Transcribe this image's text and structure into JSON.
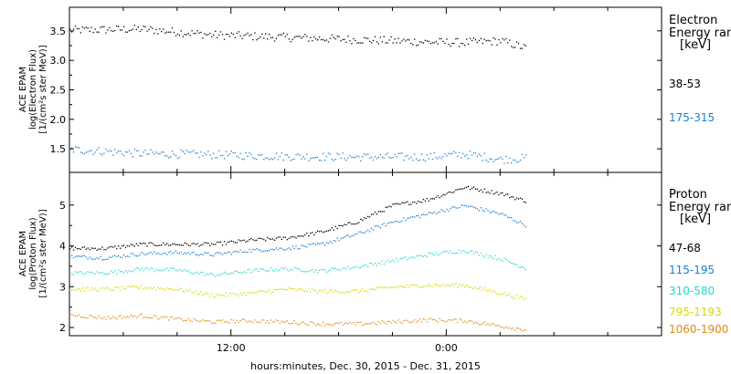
{
  "chart_data": [
    {
      "type": "scatter",
      "panel": "electron",
      "ylabel_lines": [
        "ACE EPAM",
        "log(Electron Flux)",
        "[1/(cm²s ster MeV)]"
      ],
      "legend_title_lines": [
        "Electron",
        "Energy ranges",
        "[keV]"
      ],
      "ylim": [
        1.1,
        3.9
      ],
      "yticks": [
        1.5,
        2.0,
        2.5,
        3.0,
        3.5
      ],
      "ytick_labels": [
        "1.5",
        "2.0",
        "2.5",
        "3.0",
        "3.5"
      ],
      "series": [
        {
          "name": "38-53",
          "color": "#000000",
          "x": [
            0,
            4,
            8,
            10,
            12,
            14,
            16,
            18,
            20,
            22,
            24,
            25.5
          ],
          "y": [
            3.52,
            3.54,
            3.44,
            3.42,
            3.4,
            3.38,
            3.36,
            3.34,
            3.32,
            3.31,
            3.34,
            3.21
          ]
        },
        {
          "name": "175-315",
          "color": "#1a7fd4",
          "x": [
            0,
            4,
            8,
            12,
            16,
            20,
            22,
            24,
            25.5
          ],
          "y": [
            1.5,
            1.43,
            1.41,
            1.38,
            1.37,
            1.37,
            1.42,
            1.33,
            1.35
          ]
        }
      ]
    },
    {
      "type": "scatter",
      "panel": "proton",
      "ylabel_lines": [
        "ACE EPAM",
        "log(Proton Flux)",
        "[1/(cm²s ster MeV)]"
      ],
      "legend_title_lines": [
        "Proton",
        "Energy ranges",
        "[keV]"
      ],
      "ylim": [
        1.8,
        5.8
      ],
      "yticks": [
        2,
        3,
        4,
        5
      ],
      "ytick_labels": [
        "2",
        "3",
        "4",
        "5"
      ],
      "series": [
        {
          "name": "47-68",
          "color": "#000000",
          "x": [
            0,
            2,
            4,
            6,
            8,
            10,
            12,
            14,
            16,
            18,
            20,
            22,
            24,
            25.5
          ],
          "y": [
            3.95,
            3.95,
            4.05,
            4.05,
            4.05,
            4.15,
            4.2,
            4.35,
            4.6,
            5.0,
            5.15,
            5.45,
            5.3,
            5.1
          ]
        },
        {
          "name": "115-195",
          "color": "#1a7fd4",
          "x": [
            0,
            2,
            4,
            6,
            8,
            10,
            12,
            14,
            16,
            18,
            20,
            22,
            24,
            25.5
          ],
          "y": [
            3.75,
            3.72,
            3.82,
            3.85,
            3.8,
            3.9,
            3.95,
            4.05,
            4.3,
            4.6,
            4.8,
            5.0,
            4.8,
            4.5
          ]
        },
        {
          "name": "310-580",
          "color": "#2ad8c8",
          "x": [
            0,
            2,
            4,
            6,
            8,
            10,
            12,
            14,
            16,
            18,
            20,
            22,
            24,
            25.5
          ],
          "y": [
            3.35,
            3.35,
            3.45,
            3.42,
            3.3,
            3.4,
            3.45,
            3.4,
            3.5,
            3.65,
            3.8,
            3.9,
            3.7,
            3.45
          ]
        },
        {
          "name": "795-1193",
          "color": "#d8d800",
          "x": [
            0,
            2,
            4,
            6,
            8,
            10,
            12,
            14,
            16,
            18,
            20,
            22,
            24,
            25.5
          ],
          "y": [
            2.95,
            2.95,
            3.0,
            2.95,
            2.8,
            2.85,
            2.95,
            2.9,
            2.9,
            3.0,
            3.05,
            3.05,
            2.85,
            2.7
          ]
        },
        {
          "name": "1060-1900",
          "color": "#e08a10",
          "x": [
            0,
            2,
            4,
            6,
            8,
            10,
            12,
            14,
            16,
            18,
            20,
            22,
            24,
            25.5
          ],
          "y": [
            2.32,
            2.25,
            2.3,
            2.22,
            2.15,
            2.18,
            2.15,
            2.1,
            2.1,
            2.15,
            2.2,
            2.18,
            2.05,
            1.95
          ]
        }
      ]
    }
  ],
  "x_axis": {
    "xlim": [
      0,
      33
    ],
    "ticks": [
      9,
      21
    ],
    "tick_labels": [
      "12:00",
      "0:00"
    ],
    "xlabel": "hours:minutes, Dec. 30, 2015 - Dec. 31, 2015"
  }
}
